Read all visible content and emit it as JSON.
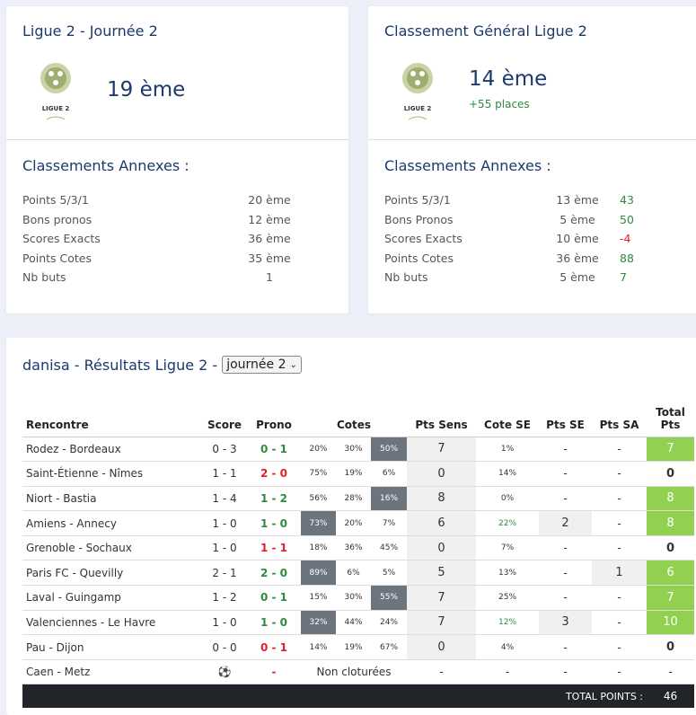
{
  "card1": {
    "title": "Ligue 2 - Journée 2",
    "logo_text": "LIGUE 2",
    "rank": "19 ème",
    "annexes_title": "Classements Annexes :",
    "rows": [
      {
        "label": "Points 5/3/1",
        "value": "20 ème"
      },
      {
        "label": "Bons pronos",
        "value": "12 ème"
      },
      {
        "label": "Scores Exacts",
        "value": "36 ème"
      },
      {
        "label": "Points Cotes",
        "value": "35 ème"
      },
      {
        "label": "Nb buts",
        "value": "1"
      }
    ]
  },
  "card2": {
    "title": "Classement Général Ligue 2",
    "logo_text": "LIGUE 2",
    "rank": "14 ème",
    "delta": "+55 places",
    "annexes_title": "Classements Annexes :",
    "rows": [
      {
        "label": "Points 5/3/1",
        "value": "13 ème",
        "pts": "43"
      },
      {
        "label": "Bons Pronos",
        "value": "5 ème",
        "pts": "50"
      },
      {
        "label": "Scores Exacts",
        "value": "10 ème",
        "pts": "-4"
      },
      {
        "label": "Points Cotes",
        "value": "36 ème",
        "pts": "88"
      },
      {
        "label": "Nb buts",
        "value": "5 ème",
        "pts": "7"
      }
    ]
  },
  "results": {
    "title": "danisa - Résultats Ligue 2 -",
    "select_value": "journée 2",
    "headers": [
      "Rencontre",
      "Score",
      "Prono",
      "Cotes",
      "Pts Sens",
      "Cote SE",
      "Pts SE",
      "Pts SA",
      "Total Pts"
    ],
    "rows": [
      {
        "match": "Rodez - Bordeaux",
        "score": "0 - 3",
        "prono": "0 - 1",
        "prono_ok": true,
        "cotes": [
          "20%",
          "30%",
          "50%"
        ],
        "hl": 2,
        "sens": "7",
        "cse": "1%",
        "cse_green": false,
        "se": "-",
        "sa": "-",
        "total": "7"
      },
      {
        "match": "Saint-Étienne - Nîmes",
        "score": "1 - 1",
        "prono": "2 - 0",
        "prono_ok": false,
        "cotes": [
          "75%",
          "19%",
          "6%"
        ],
        "hl": -1,
        "sens": "0",
        "cse": "14%",
        "cse_green": false,
        "se": "-",
        "sa": "-",
        "total": "0"
      },
      {
        "match": "Niort - Bastia",
        "score": "1 - 4",
        "prono": "1 - 2",
        "prono_ok": true,
        "cotes": [
          "56%",
          "28%",
          "16%"
        ],
        "hl": 2,
        "sens": "8",
        "cse": "0%",
        "cse_green": false,
        "se": "-",
        "sa": "-",
        "total": "8"
      },
      {
        "match": "Amiens - Annecy",
        "score": "1 - 0",
        "prono": "1 - 0",
        "prono_ok": true,
        "cotes": [
          "73%",
          "20%",
          "7%"
        ],
        "hl": 0,
        "sens": "6",
        "cse": "22%",
        "cse_green": true,
        "se": "2",
        "sa": "-",
        "total": "8"
      },
      {
        "match": "Grenoble - Sochaux",
        "score": "1 - 0",
        "prono": "1 - 1",
        "prono_ok": false,
        "cotes": [
          "18%",
          "36%",
          "45%"
        ],
        "hl": -1,
        "sens": "0",
        "cse": "7%",
        "cse_green": false,
        "se": "-",
        "sa": "-",
        "total": "0"
      },
      {
        "match": "Paris FC - Quevilly",
        "score": "2 - 1",
        "prono": "2 - 0",
        "prono_ok": true,
        "cotes": [
          "89%",
          "6%",
          "5%"
        ],
        "hl": 0,
        "sens": "5",
        "cse": "13%",
        "cse_green": false,
        "se": "-",
        "sa": "1",
        "total": "6"
      },
      {
        "match": "Laval - Guingamp",
        "score": "1 - 2",
        "prono": "0 - 1",
        "prono_ok": true,
        "cotes": [
          "15%",
          "30%",
          "55%"
        ],
        "hl": 2,
        "sens": "7",
        "cse": "25%",
        "cse_green": false,
        "se": "-",
        "sa": "-",
        "total": "7"
      },
      {
        "match": "Valenciennes - Le Havre",
        "score": "1 - 0",
        "prono": "1 - 0",
        "prono_ok": true,
        "cotes": [
          "32%",
          "44%",
          "24%"
        ],
        "hl": 0,
        "sens": "7",
        "cse": "12%",
        "cse_green": true,
        "se": "3",
        "sa": "-",
        "total": "10"
      },
      {
        "match": "Pau - Dijon",
        "score": "0 - 0",
        "prono": "0 - 1",
        "prono_ok": false,
        "cotes": [
          "14%",
          "19%",
          "67%"
        ],
        "hl": -1,
        "sens": "0",
        "cse": "4%",
        "cse_green": false,
        "se": "-",
        "sa": "-",
        "total": "0"
      }
    ],
    "pending": {
      "match": "Caen - Metz",
      "prono": "-",
      "cotes_text": "Non cloturées",
      "sens": "-",
      "cse": "-",
      "se": "-",
      "sa": "-",
      "total": "-"
    },
    "total_label": "TOTAL POINTS :",
    "total_value": "46"
  },
  "colors": {
    "title": "#1b3a6b",
    "green": "#2e8b3e",
    "red": "#e0202a",
    "total_bg": "#92d050",
    "highlight": "#6c757d"
  }
}
